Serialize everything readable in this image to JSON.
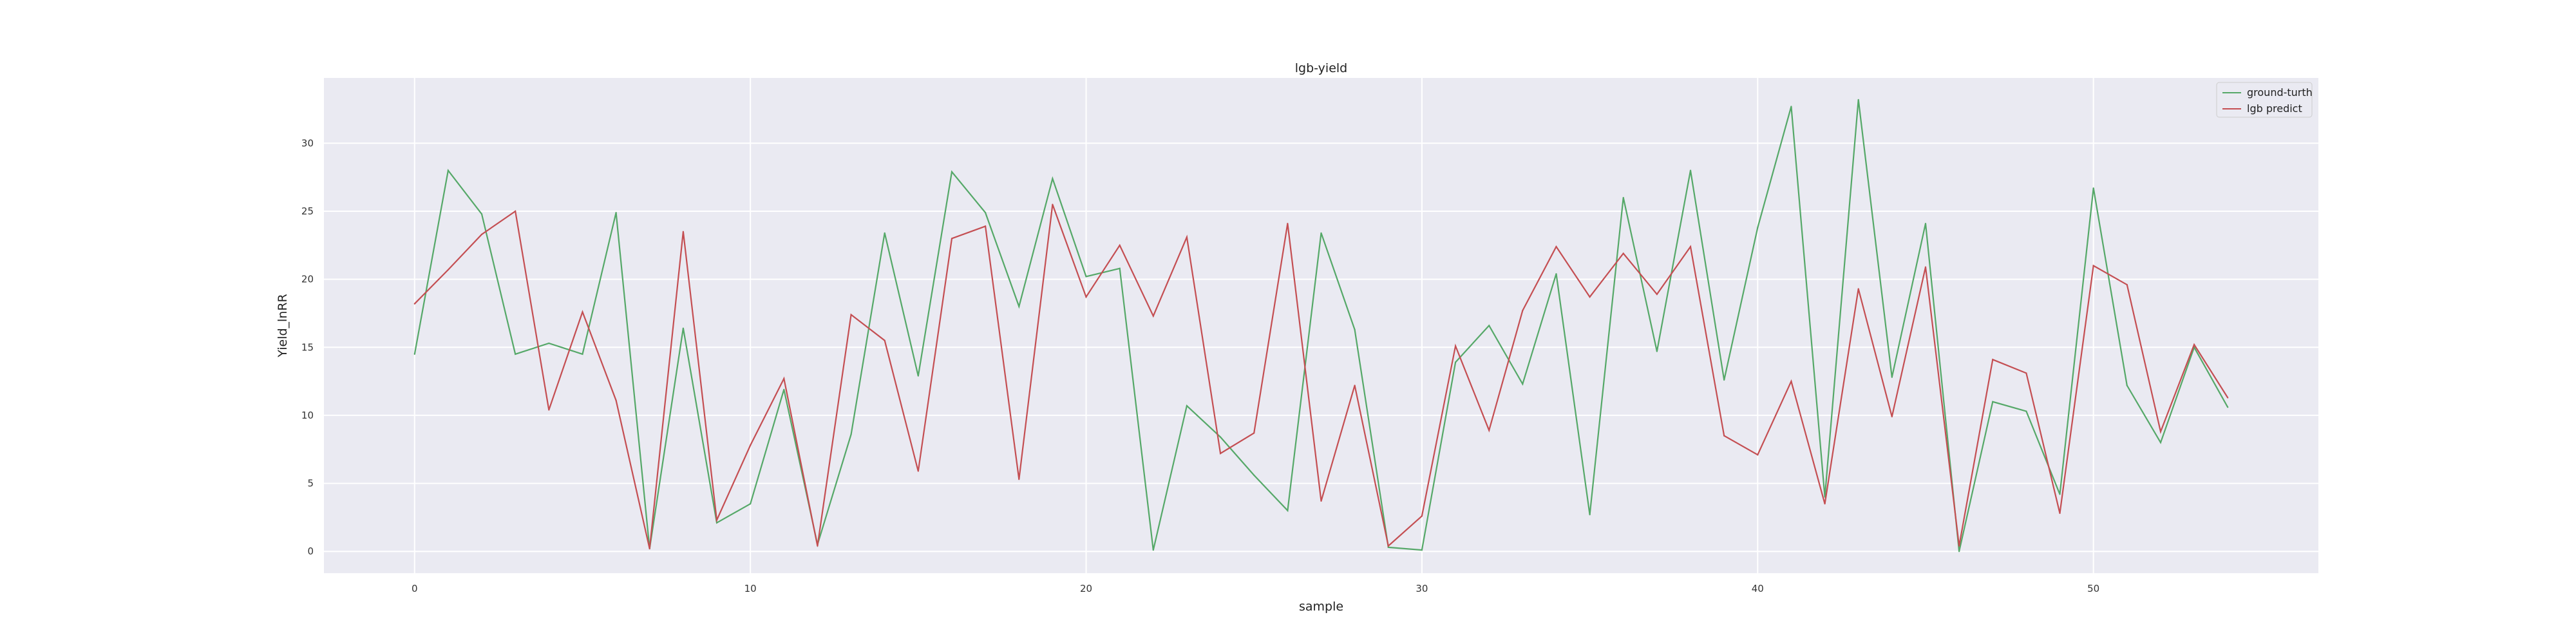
{
  "chart_data": {
    "type": "line",
    "title": "lgb-yield",
    "xlabel": "sample",
    "ylabel": "Yield_lnRR",
    "xlim": [
      -2.7,
      56.7
    ],
    "ylim": [
      -1.6,
      34.8
    ],
    "xticks": [
      0,
      10,
      20,
      30,
      40,
      50
    ],
    "yticks": [
      0,
      5,
      10,
      15,
      20,
      25,
      30
    ],
    "grid": true,
    "legend_position": "top-right",
    "background_color": "#eaeaf2",
    "grid_color": "#ffffff",
    "x": [
      0,
      1,
      2,
      3,
      4,
      5,
      6,
      7,
      8,
      9,
      10,
      11,
      12,
      13,
      14,
      15,
      16,
      17,
      18,
      19,
      20,
      21,
      22,
      23,
      24,
      25,
      26,
      27,
      28,
      29,
      30,
      31,
      32,
      33,
      34,
      35,
      36,
      37,
      38,
      39,
      40,
      41,
      42,
      43,
      44,
      45,
      46,
      47,
      48,
      49,
      50,
      51,
      52,
      53,
      54
    ],
    "series": [
      {
        "name": "ground-turth",
        "color": "#55a868",
        "values": [
          14.5,
          28.0,
          24.8,
          14.5,
          15.3,
          14.5,
          24.9,
          0.2,
          16.4,
          2.1,
          3.5,
          11.9,
          0.5,
          8.6,
          23.4,
          12.9,
          27.9,
          24.9,
          18.0,
          27.4,
          20.2,
          20.8,
          0.1,
          10.7,
          8.4,
          5.6,
          3.0,
          23.4,
          16.3,
          0.3,
          0.1,
          13.9,
          16.6,
          12.3,
          20.4,
          2.7,
          26.0,
          14.7,
          28.0,
          12.6,
          23.8,
          32.7,
          4.0,
          33.2,
          12.8,
          24.1,
          0.0,
          11.0,
          10.3,
          4.2,
          26.7,
          12.2,
          8.0,
          15.0,
          10.6
        ]
      },
      {
        "name": "lgb predict",
        "color": "#c44e52",
        "values": [
          18.2,
          20.7,
          23.3,
          25.0,
          10.4,
          17.6,
          11.1,
          0.2,
          23.5,
          2.3,
          7.8,
          12.7,
          0.4,
          17.4,
          15.5,
          5.9,
          23.0,
          23.9,
          5.3,
          25.5,
          18.7,
          22.5,
          17.3,
          23.1,
          7.2,
          8.7,
          24.1,
          3.7,
          12.2,
          0.4,
          2.6,
          15.1,
          8.9,
          17.7,
          22.4,
          18.7,
          21.9,
          18.9,
          22.4,
          8.5,
          7.1,
          12.5,
          3.5,
          19.3,
          9.9,
          20.9,
          0.4,
          14.1,
          13.1,
          2.8,
          21.0,
          19.6,
          8.8,
          15.2,
          11.3
        ]
      }
    ]
  }
}
